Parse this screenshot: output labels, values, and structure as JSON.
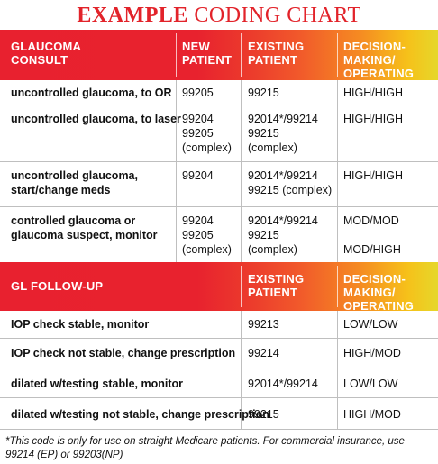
{
  "title": {
    "bold_part": "EXAMPLE",
    "regular_part": "CODING CHART"
  },
  "section1": {
    "headers": {
      "col1": [
        "GLAUCOMA",
        "CONSULT"
      ],
      "col2": [
        "NEW",
        "PATIENT"
      ],
      "col3": [
        "EXISTING",
        "PATIENT"
      ],
      "col4": [
        "DECISION-MAKING/",
        "OPERATING ROOM"
      ]
    },
    "rows": [
      {
        "label": [
          "uncontrolled glaucoma, to OR"
        ],
        "new": [
          "99205"
        ],
        "existing": [
          "99215"
        ],
        "decision": [
          "HIGH/HIGH"
        ]
      },
      {
        "label": [
          "uncontrolled glaucoma, to laser"
        ],
        "new": [
          "99204",
          "99205",
          "(complex)"
        ],
        "existing": [
          "92014*/99214",
          "99215",
          "(complex)"
        ],
        "decision": [
          "HIGH/HIGH"
        ]
      },
      {
        "label": [
          "uncontrolled glaucoma,",
          "start/change meds"
        ],
        "new": [
          "99204"
        ],
        "existing": [
          "92014*/99214",
          "99215 (complex)"
        ],
        "decision": [
          "HIGH/HIGH"
        ]
      },
      {
        "label": [
          "controlled glaucoma or",
          "glaucoma suspect, monitor"
        ],
        "new": [
          "99204",
          "99205",
          "(complex)"
        ],
        "existing": [
          "92014*/99214",
          "99215",
          "(complex)"
        ],
        "decision": [
          "MOD/MOD",
          "MOD/HIGH"
        ]
      }
    ]
  },
  "section2": {
    "headers": {
      "col1": [
        "GL FOLLOW-UP"
      ],
      "col3": [
        "EXISTING",
        "PATIENT"
      ],
      "col4": [
        "DECISION-MAKING/",
        "OPERATING ROOM"
      ]
    },
    "rows": [
      {
        "label": "IOP check stable, monitor",
        "existing": "99213",
        "decision": "LOW/LOW"
      },
      {
        "label": "IOP check not stable, change prescription",
        "existing": "99214",
        "decision": "HIGH/MOD"
      },
      {
        "label": "dilated w/testing stable, monitor",
        "existing": "92014*/99214",
        "decision": "LOW/LOW"
      },
      {
        "label": "dilated w/testing not stable, change prescription",
        "existing": "99215",
        "decision": "HIGH/MOD"
      }
    ]
  },
  "footnote": "*This code is only for use on straight Medicare patients. For commercial insurance, use 99214 (EP) or 99203(NP)",
  "colors": {
    "title_red": "#e2232a",
    "band_red": "#e8212f",
    "band_yellow": "#e6d72a"
  }
}
